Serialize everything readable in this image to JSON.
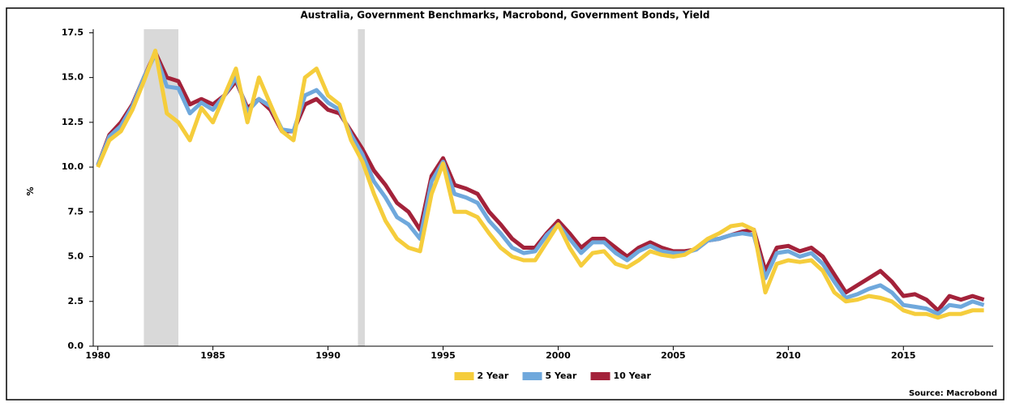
{
  "chart_data": {
    "type": "line",
    "title": "Australia, Government Benchmarks, Macrobond, Government Bonds, Yield",
    "y_label": "%",
    "source": "Source: Macrobond",
    "x": [
      1980,
      1980.5,
      1981,
      1981.5,
      1982,
      1982.5,
      1983,
      1983.5,
      1984,
      1984.5,
      1985,
      1985.5,
      1986,
      1986.5,
      1987,
      1987.5,
      1988,
      1988.5,
      1989,
      1989.5,
      1990,
      1990.5,
      1991,
      1991.5,
      1992,
      1992.5,
      1993,
      1993.5,
      1994,
      1994.5,
      1995,
      1995.5,
      1996,
      1996.5,
      1997,
      1997.5,
      1998,
      1998.5,
      1999,
      1999.5,
      2000,
      2000.5,
      2001,
      2001.5,
      2002,
      2002.5,
      2003,
      2003.5,
      2004,
      2004.5,
      2005,
      2005.5,
      2006,
      2006.5,
      2007,
      2007.5,
      2008,
      2008.5,
      2009,
      2009.5,
      2010,
      2010.5,
      2011,
      2011.5,
      2012,
      2012.5,
      2013,
      2013.5,
      2014,
      2014.5,
      2015,
      2015.5,
      2016,
      2016.5,
      2017,
      2017.5,
      2018,
      2018.5
    ],
    "series": [
      {
        "name": "2 Year",
        "color": "#f5cd3c",
        "values": [
          10.0,
          11.5,
          12.0,
          13.2,
          14.8,
          16.5,
          13.0,
          12.5,
          11.5,
          13.3,
          12.5,
          14.0,
          15.5,
          12.5,
          15.0,
          13.5,
          12.0,
          11.5,
          15.0,
          15.5,
          14.0,
          13.5,
          11.5,
          10.3,
          8.5,
          7.0,
          6.0,
          5.5,
          5.3,
          8.5,
          10.2,
          7.5,
          7.5,
          7.2,
          6.3,
          5.5,
          5.0,
          4.8,
          4.8,
          5.8,
          6.8,
          5.5,
          4.5,
          5.2,
          5.3,
          4.6,
          4.4,
          4.8,
          5.3,
          5.1,
          5.0,
          5.1,
          5.5,
          6.0,
          6.3,
          6.7,
          6.8,
          6.5,
          3.0,
          4.6,
          4.8,
          4.7,
          4.8,
          4.2,
          3.0,
          2.5,
          2.6,
          2.8,
          2.7,
          2.5,
          2.0,
          1.8,
          1.8,
          1.6,
          1.8,
          1.8,
          2.0,
          2.0
        ]
      },
      {
        "name": "5 Year",
        "color": "#6fa8dc",
        "values": [
          10.1,
          11.7,
          12.3,
          13.4,
          15.0,
          16.3,
          14.5,
          14.4,
          13.0,
          13.6,
          13.2,
          14.0,
          15.0,
          13.1,
          13.8,
          13.4,
          12.1,
          12.0,
          14.0,
          14.3,
          13.6,
          13.2,
          11.8,
          10.7,
          9.2,
          8.3,
          7.2,
          6.8,
          6.0,
          9.2,
          10.3,
          8.5,
          8.3,
          8.0,
          7.0,
          6.3,
          5.5,
          5.2,
          5.3,
          6.2,
          6.8,
          6.0,
          5.2,
          5.8,
          5.8,
          5.2,
          4.8,
          5.3,
          5.6,
          5.3,
          5.2,
          5.2,
          5.4,
          5.9,
          6.0,
          6.2,
          6.3,
          6.2,
          3.8,
          5.2,
          5.3,
          5.0,
          5.2,
          4.6,
          3.6,
          2.7,
          2.9,
          3.2,
          3.4,
          3.0,
          2.3,
          2.2,
          2.1,
          1.8,
          2.3,
          2.2,
          2.5,
          2.3
        ]
      },
      {
        "name": "10 Year",
        "color": "#a3223a",
        "values": [
          10.1,
          11.8,
          12.5,
          13.5,
          15.0,
          16.4,
          15.0,
          14.8,
          13.5,
          13.8,
          13.5,
          14.0,
          14.8,
          13.3,
          13.8,
          13.2,
          12.0,
          12.0,
          13.5,
          13.8,
          13.2,
          13.0,
          12.0,
          11.0,
          9.8,
          9.0,
          8.0,
          7.5,
          6.5,
          9.5,
          10.5,
          9.0,
          8.8,
          8.5,
          7.5,
          6.8,
          6.0,
          5.5,
          5.5,
          6.3,
          7.0,
          6.3,
          5.5,
          6.0,
          6.0,
          5.5,
          5.0,
          5.5,
          5.8,
          5.5,
          5.3,
          5.3,
          5.4,
          5.9,
          6.0,
          6.2,
          6.4,
          6.5,
          4.2,
          5.5,
          5.6,
          5.3,
          5.5,
          5.0,
          4.0,
          3.0,
          3.4,
          3.8,
          4.2,
          3.6,
          2.8,
          2.9,
          2.6,
          2.0,
          2.8,
          2.6,
          2.8,
          2.6
        ]
      }
    ],
    "shaded_periods": [
      [
        1982.0,
        1983.5
      ],
      [
        1991.3,
        1991.6
      ]
    ],
    "shade_color": "#d9d9d9",
    "xlim": [
      1979.8,
      2018.9
    ],
    "xticks": [
      1980,
      1985,
      1990,
      1995,
      2000,
      2005,
      2010,
      2015
    ],
    "ylim": [
      0,
      17.7
    ],
    "yticks": [
      {
        "value": 0,
        "label": "0.0"
      },
      2.5,
      {
        "value": 5,
        "label": "5.0"
      },
      7.5,
      {
        "value": 10,
        "label": "10.0"
      },
      12.5,
      {
        "value": 15,
        "label": "15.0"
      },
      17.5
    ],
    "grid": false,
    "legend": "bottom"
  }
}
